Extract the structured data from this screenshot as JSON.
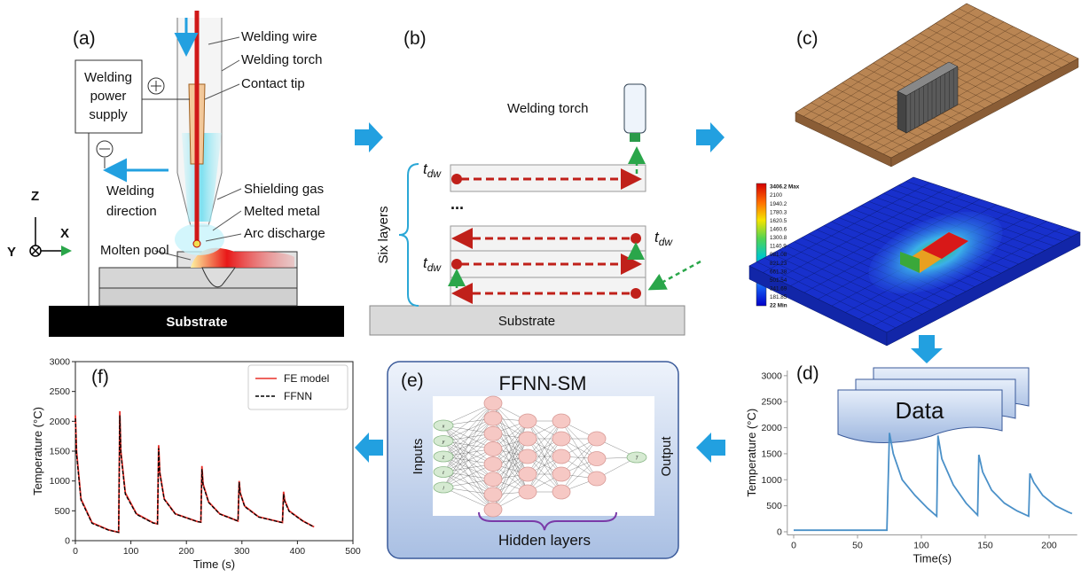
{
  "panel_a": {
    "label": "(a)",
    "power_supply": [
      "Welding",
      "power",
      "supply"
    ],
    "wire": "Welding wire",
    "torch": "Welding torch",
    "contact_tip": "Contact tip",
    "direction": [
      "Welding",
      "direction"
    ],
    "shielding_gas": "Shielding gas",
    "melted_metal": "Melted metal",
    "arc_discharge": "Arc discharge",
    "molten_pool": "Molten pool",
    "substrate": "Substrate",
    "axes": [
      "Z",
      "X",
      "Y"
    ]
  },
  "panel_b": {
    "label": "(b)",
    "torch": "Welding torch",
    "dwell_time": {
      "base": "t",
      "sub": "dw"
    },
    "ellipsis": "...",
    "six_layers": "Six layers",
    "substrate": "Substrate"
  },
  "panel_c": {
    "label": "(c)",
    "colorbar": [
      "3406.2 Max",
      "2100",
      "1940.2",
      "1780.3",
      "1620.5",
      "1460.6",
      "1300.8",
      "1140.9",
      "981.08",
      "821.23",
      "661.38",
      "501.54",
      "341.69",
      "181.85",
      "22 Min"
    ]
  },
  "panel_d": {
    "label": "(d)",
    "data_box": "Data",
    "chart": {
      "type": "line",
      "xlabel": "Time(s)",
      "ylabel": "Temperature (°C)",
      "spines": "left-bottom",
      "xlim": [
        -5,
        222
      ],
      "ylim": [
        -60,
        3100
      ],
      "xticks": [
        0,
        50,
        100,
        150,
        200
      ],
      "yticks": [
        0,
        500,
        1000,
        1500,
        2000,
        2500,
        3000
      ],
      "x": [
        0,
        73,
        75,
        78,
        85,
        95,
        105,
        112,
        113,
        116,
        125,
        135,
        144,
        145,
        148,
        155,
        165,
        175,
        184,
        185,
        188,
        195,
        205,
        215,
        218
      ],
      "series": [
        {
          "name": null,
          "color": "#4a90c8",
          "style": "solid",
          "values": [
            30,
            30,
            1900,
            1500,
            1000,
            700,
            450,
            300,
            1850,
            1400,
            900,
            550,
            320,
            1480,
            1150,
            800,
            550,
            400,
            300,
            1120,
            950,
            700,
            500,
            380,
            350
          ]
        }
      ]
    }
  },
  "panel_e": {
    "label": "(e)",
    "title": "FFNN-SM",
    "inputs": "Inputs",
    "output": "Output",
    "hidden": "Hidden layers",
    "input_nodes": [
      "x",
      "y",
      "z",
      "t",
      "l"
    ],
    "output_node": "T"
  },
  "panel_f": {
    "label": "(f)",
    "chart": {
      "type": "line",
      "xlabel": "Time (s)",
      "ylabel": "Temperature (°C)",
      "spines": "box",
      "legend": "upper right",
      "xlim": [
        0,
        500
      ],
      "ylim": [
        0,
        3000
      ],
      "xticks": [
        0,
        100,
        200,
        300,
        400,
        500
      ],
      "yticks": [
        0,
        500,
        1000,
        1500,
        2000,
        2500,
        3000
      ],
      "x": [
        0,
        2,
        10,
        30,
        60,
        78,
        80,
        82,
        90,
        110,
        140,
        148,
        150,
        152,
        160,
        180,
        220,
        226,
        228,
        230,
        240,
        260,
        290,
        293,
        295,
        297,
        305,
        330,
        370,
        373,
        375,
        377,
        385,
        410,
        430
      ],
      "series": [
        {
          "name": "FE model",
          "color": "#e8302a",
          "style": "solid",
          "values": [
            2100,
            1500,
            700,
            300,
            180,
            140,
            2170,
            1500,
            800,
            450,
            300,
            280,
            1600,
            1150,
            700,
            450,
            320,
            310,
            1250,
            950,
            650,
            450,
            340,
            330,
            1000,
            800,
            580,
            400,
            310,
            305,
            820,
            680,
            500,
            330,
            230
          ]
        },
        {
          "name": "FFNN",
          "color": "#000000",
          "style": "dashed",
          "values": [
            2050,
            1450,
            680,
            290,
            175,
            140,
            2100,
            1450,
            780,
            440,
            295,
            280,
            1550,
            1120,
            690,
            445,
            318,
            310,
            1200,
            930,
            640,
            445,
            338,
            330,
            980,
            790,
            570,
            395,
            308,
            305,
            780,
            660,
            490,
            325,
            228
          ]
        }
      ]
    }
  }
}
